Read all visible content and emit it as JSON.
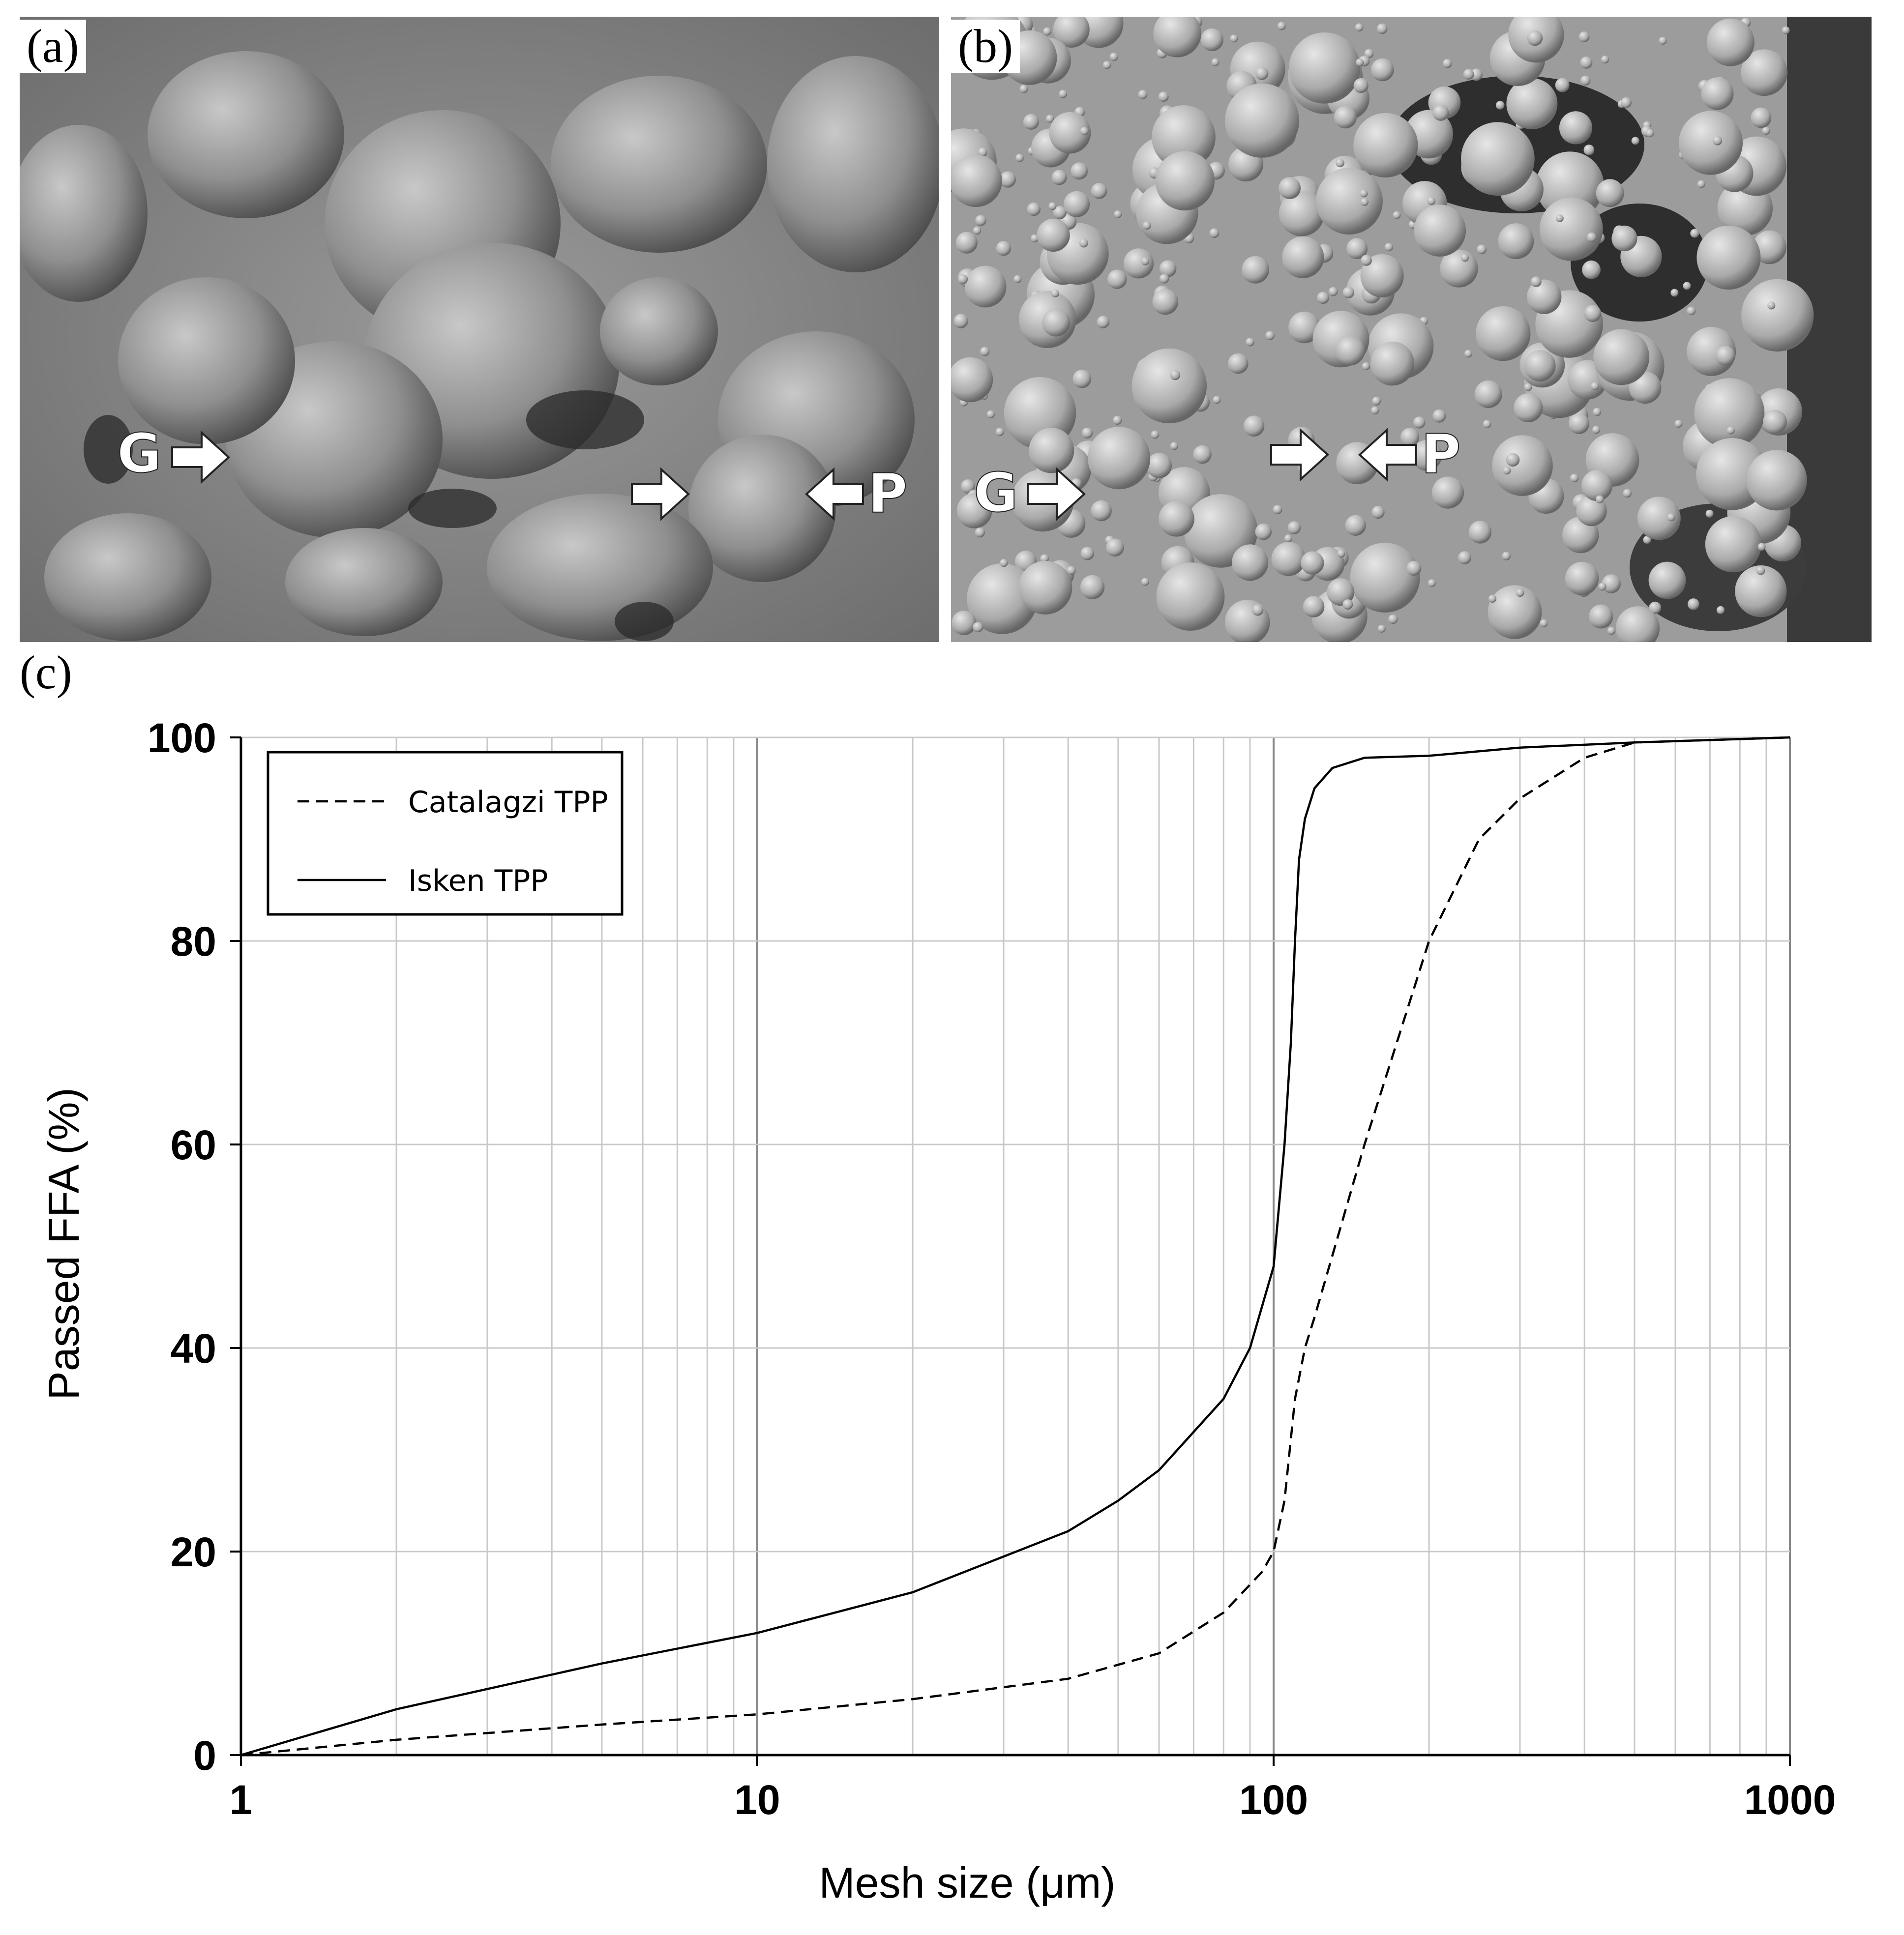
{
  "panels": {
    "a": {
      "label": "(a)",
      "markers": [
        "G",
        "P"
      ]
    },
    "b": {
      "label": "(b)",
      "markers": [
        "G",
        "P"
      ]
    },
    "c": {
      "label": "(c)"
    }
  },
  "chart_data": {
    "type": "line",
    "xlabel": "Mesh size (μm)",
    "ylabel": "Passed FFA (%)",
    "xscale": "log",
    "xlim": [
      1,
      1000
    ],
    "ylim": [
      0,
      100
    ],
    "xticks": [
      1,
      10,
      100,
      1000
    ],
    "yticks": [
      0,
      20,
      40,
      60,
      80,
      100
    ],
    "grid": true,
    "legend_position": "top-left",
    "series": [
      {
        "name": "Catalagzi TPP",
        "style": "dashed",
        "x": [
          1,
          2,
          5,
          10,
          20,
          40,
          60,
          80,
          95,
          100,
          105,
          110,
          115,
          120,
          150,
          200,
          250,
          300,
          400,
          500,
          1000
        ],
        "y": [
          0,
          1.5,
          3,
          4,
          5.5,
          7.5,
          10,
          14,
          18,
          20,
          25,
          35,
          40,
          43,
          60,
          80,
          90,
          94,
          98,
          99.5,
          100
        ]
      },
      {
        "name": "Isken TPP",
        "style": "solid",
        "x": [
          1,
          2,
          5,
          10,
          20,
          40,
          50,
          60,
          80,
          90,
          100,
          105,
          108,
          110,
          112,
          115,
          120,
          130,
          150,
          200,
          300,
          500,
          1000
        ],
        "y": [
          0,
          4.5,
          9,
          12,
          16,
          22,
          25,
          28,
          35,
          40,
          48,
          60,
          70,
          80,
          88,
          92,
          95,
          97,
          98,
          98.2,
          99,
          99.5,
          100
        ]
      }
    ]
  }
}
